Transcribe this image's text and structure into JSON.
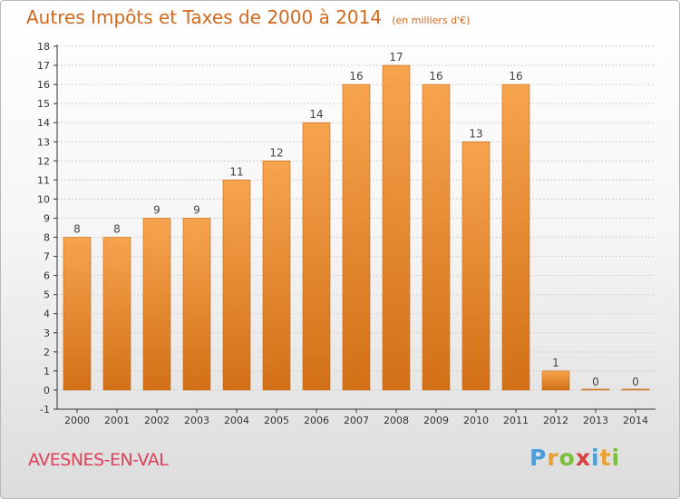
{
  "header": {
    "title": "Autres Impôts et Taxes de 2000 à 2014",
    "subtitle": "(en milliers d'€)"
  },
  "footer": {
    "commune": "AVESNES-EN-VAL",
    "logo_letters": [
      "P",
      "r",
      "o",
      "x",
      "i",
      "t",
      "i"
    ],
    "logo_colors": [
      "#4a9fd8",
      "#e8a030",
      "#7cbf3a",
      "#d84040",
      "#4a9fd8",
      "#e8a030",
      "#7cbf3a"
    ]
  },
  "colors": {
    "bar_top": "#f7a44f",
    "bar_bottom": "#d27016",
    "bar_edge": "#c8650f",
    "axis": "#333333",
    "tick_text": "#333333",
    "grid": "#cfcfcf",
    "title": "#d2691e",
    "commune": "#e0405a"
  },
  "chart_data": {
    "type": "bar",
    "categories": [
      "2000",
      "2001",
      "2002",
      "2003",
      "2004",
      "2005",
      "2006",
      "2007",
      "2008",
      "2009",
      "2010",
      "2011",
      "2012",
      "2013",
      "2014"
    ],
    "values": [
      8,
      8,
      9,
      9,
      11,
      12,
      14,
      16,
      17,
      16,
      13,
      16,
      1,
      0,
      0
    ],
    "data_labels": [
      "8",
      "8",
      "9",
      "9",
      "11",
      "12",
      "14",
      "16",
      "17",
      "16",
      "13",
      "16",
      "1",
      "0",
      "0"
    ],
    "yticks": [
      -1,
      0,
      1,
      2,
      3,
      4,
      5,
      6,
      7,
      8,
      9,
      10,
      11,
      12,
      13,
      14,
      15,
      16,
      17,
      18
    ],
    "ylim": [
      -1,
      18
    ],
    "title": "Autres Impôts et Taxes de 2000 à 2014",
    "subtitle": "(en milliers d'€)",
    "xlabel": "",
    "ylabel": "",
    "grid": true,
    "legend": "none"
  }
}
